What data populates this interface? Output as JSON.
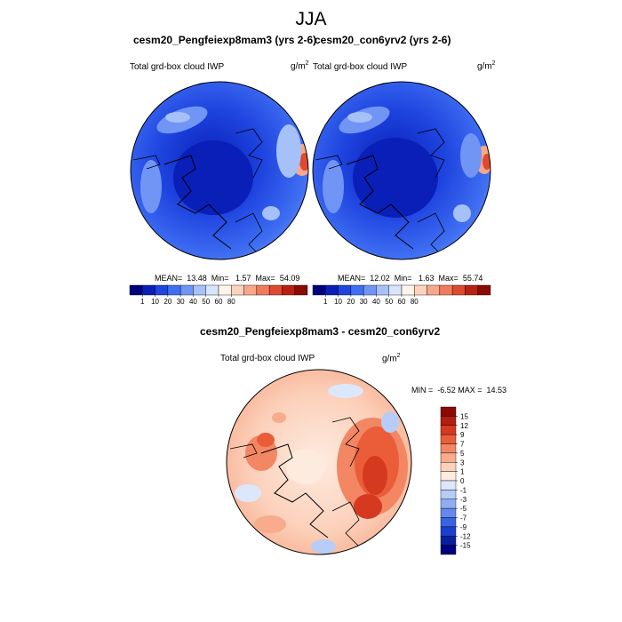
{
  "title": "JJA",
  "panels": [
    {
      "title": "cesm20_Pengfeiexp8mam3 (yrs 2-6)",
      "field_label": "Total grd-box cloud IWP",
      "units_base": "g/m",
      "units_exp": "2",
      "stats": "MEAN=  13.48  Min=   1.57  Max=  54.09"
    },
    {
      "title": "cesm20_con6yrv2 (yrs 2-6)",
      "field_label": "Total grd-box cloud IWP",
      "units_base": "g/m",
      "units_exp": "2",
      "stats": "MEAN=  12.02  Min=   1.63  Max=  55.74"
    }
  ],
  "diff_panel": {
    "title": "cesm20_Pengfeiexp8mam3 - cesm20_con6yrv2",
    "field_label": "Total grd-box cloud IWP",
    "units_base": "g/m",
    "units_exp": "2",
    "stats": "MIN =  -6.52 MAX =  14.53"
  },
  "colorbar_abs": {
    "labels": [
      "1",
      "10",
      "20",
      "30",
      "40",
      "50",
      "60",
      "80"
    ],
    "colors": [
      "#00007f",
      "#0a1fb8",
      "#1f45e0",
      "#3f6ef2",
      "#7095f5",
      "#a6c0f8",
      "#d8e4fb",
      "#fff3ea",
      "#fdd3bb",
      "#f9a78a",
      "#f07a5c",
      "#de4a30",
      "#b82112",
      "#8a0a04"
    ]
  },
  "colorbar_diff": {
    "labels": [
      "15",
      "12",
      "9",
      "7",
      "5",
      "3",
      "1",
      "0",
      "-1",
      "-3",
      "-5",
      "-7",
      "-9",
      "-12",
      "-15"
    ],
    "colors": [
      "#8a0a04",
      "#b51d0e",
      "#d53a20",
      "#ea5d38",
      "#f38663",
      "#f8ac8d",
      "#fcd1bb",
      "#fdebdf",
      "#dde7fb",
      "#b7cdf7",
      "#8eaef2",
      "#6488ec",
      "#3a63e2",
      "#1a3fcf",
      "#07209e",
      "#00007f"
    ]
  }
}
